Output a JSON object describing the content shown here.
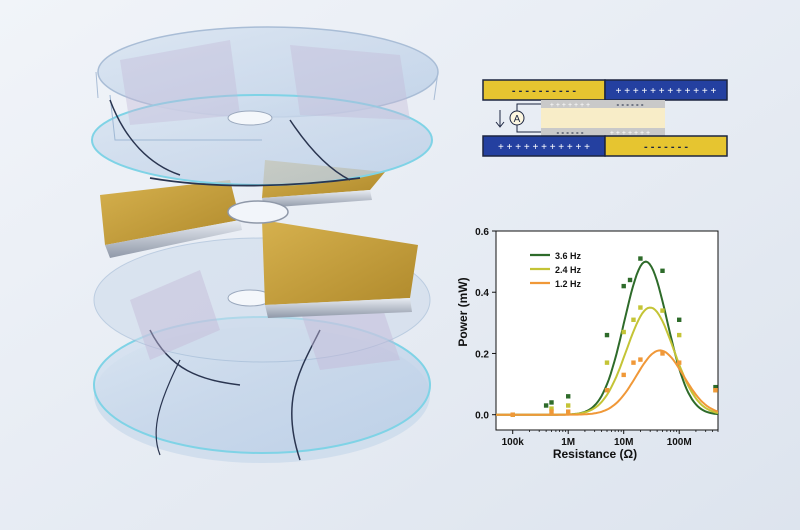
{
  "colors": {
    "background": "#e9eef5",
    "electrode_gold": "#e6c530",
    "electrode_blue": "#2440a0",
    "film": "#c9c9c9",
    "disk_glass": "#bcd7ea",
    "gold_film": "#c9a23c"
  },
  "schematic": {
    "top_left_charges": "- - - - - - - - - -",
    "top_right_charges": "+ + + + + + + + + + + +",
    "bottom_left_charges": "+ + + + + + + + + + +",
    "bottom_right_charges": "- - - - - - -",
    "upper_film_left": "+ + + + + + +",
    "upper_film_right": "- - - - - -",
    "lower_film_left": "- - - - - -",
    "lower_film_right": "+ + + + + + +",
    "ammeter_symbol": "A"
  },
  "chart_data": {
    "type": "scatter",
    "xlabel": "Resistance (Ω)",
    "ylabel": "Power (mW)",
    "x_scale": "log",
    "xlim": [
      50000,
      500000000
    ],
    "ylim": [
      -0.05,
      0.6
    ],
    "x_ticks": [
      100000,
      1000000,
      10000000,
      100000000
    ],
    "x_tick_labels": [
      "100k",
      "1M",
      "10M",
      "100M"
    ],
    "y_ticks": [
      0.0,
      0.2,
      0.4,
      0.6
    ],
    "y_tick_labels": [
      "0.0",
      "0.2",
      "0.4",
      "0.6"
    ],
    "legend_position": "top-left",
    "series": [
      {
        "name": "3.6 Hz",
        "color": "#2e6b2a",
        "points": [
          [
            100000,
            0.0
          ],
          [
            400000,
            0.03
          ],
          [
            500000,
            0.04
          ],
          [
            1000000,
            0.06
          ],
          [
            5000000,
            0.26
          ],
          [
            10000000,
            0.42
          ],
          [
            13000000,
            0.44
          ],
          [
            20000000,
            0.51
          ],
          [
            50000000,
            0.47
          ],
          [
            100000000,
            0.31
          ],
          [
            450000000,
            0.09
          ]
        ],
        "fit": {
          "peak_x": 25000000,
          "peak_y": 0.5,
          "log_width": 0.55
        }
      },
      {
        "name": "2.4 Hz",
        "color": "#c4c436",
        "points": [
          [
            100000,
            0.0
          ],
          [
            500000,
            0.02
          ],
          [
            1000000,
            0.03
          ],
          [
            5000000,
            0.17
          ],
          [
            10000000,
            0.27
          ],
          [
            15000000,
            0.31
          ],
          [
            20000000,
            0.35
          ],
          [
            50000000,
            0.34
          ],
          [
            100000000,
            0.26
          ],
          [
            450000000,
            0.08
          ]
        ],
        "fit": {
          "peak_x": 30000000,
          "peak_y": 0.35,
          "log_width": 0.6
        }
      },
      {
        "name": "1.2 Hz",
        "color": "#f09838",
        "points": [
          [
            100000,
            0.0
          ],
          [
            500000,
            0.01
          ],
          [
            1000000,
            0.01
          ],
          [
            5000000,
            0.08
          ],
          [
            10000000,
            0.13
          ],
          [
            15000000,
            0.17
          ],
          [
            20000000,
            0.18
          ],
          [
            50000000,
            0.2
          ],
          [
            100000000,
            0.17
          ],
          [
            450000000,
            0.08
          ]
        ],
        "fit": {
          "peak_x": 45000000,
          "peak_y": 0.21,
          "log_width": 0.6
        }
      }
    ]
  }
}
